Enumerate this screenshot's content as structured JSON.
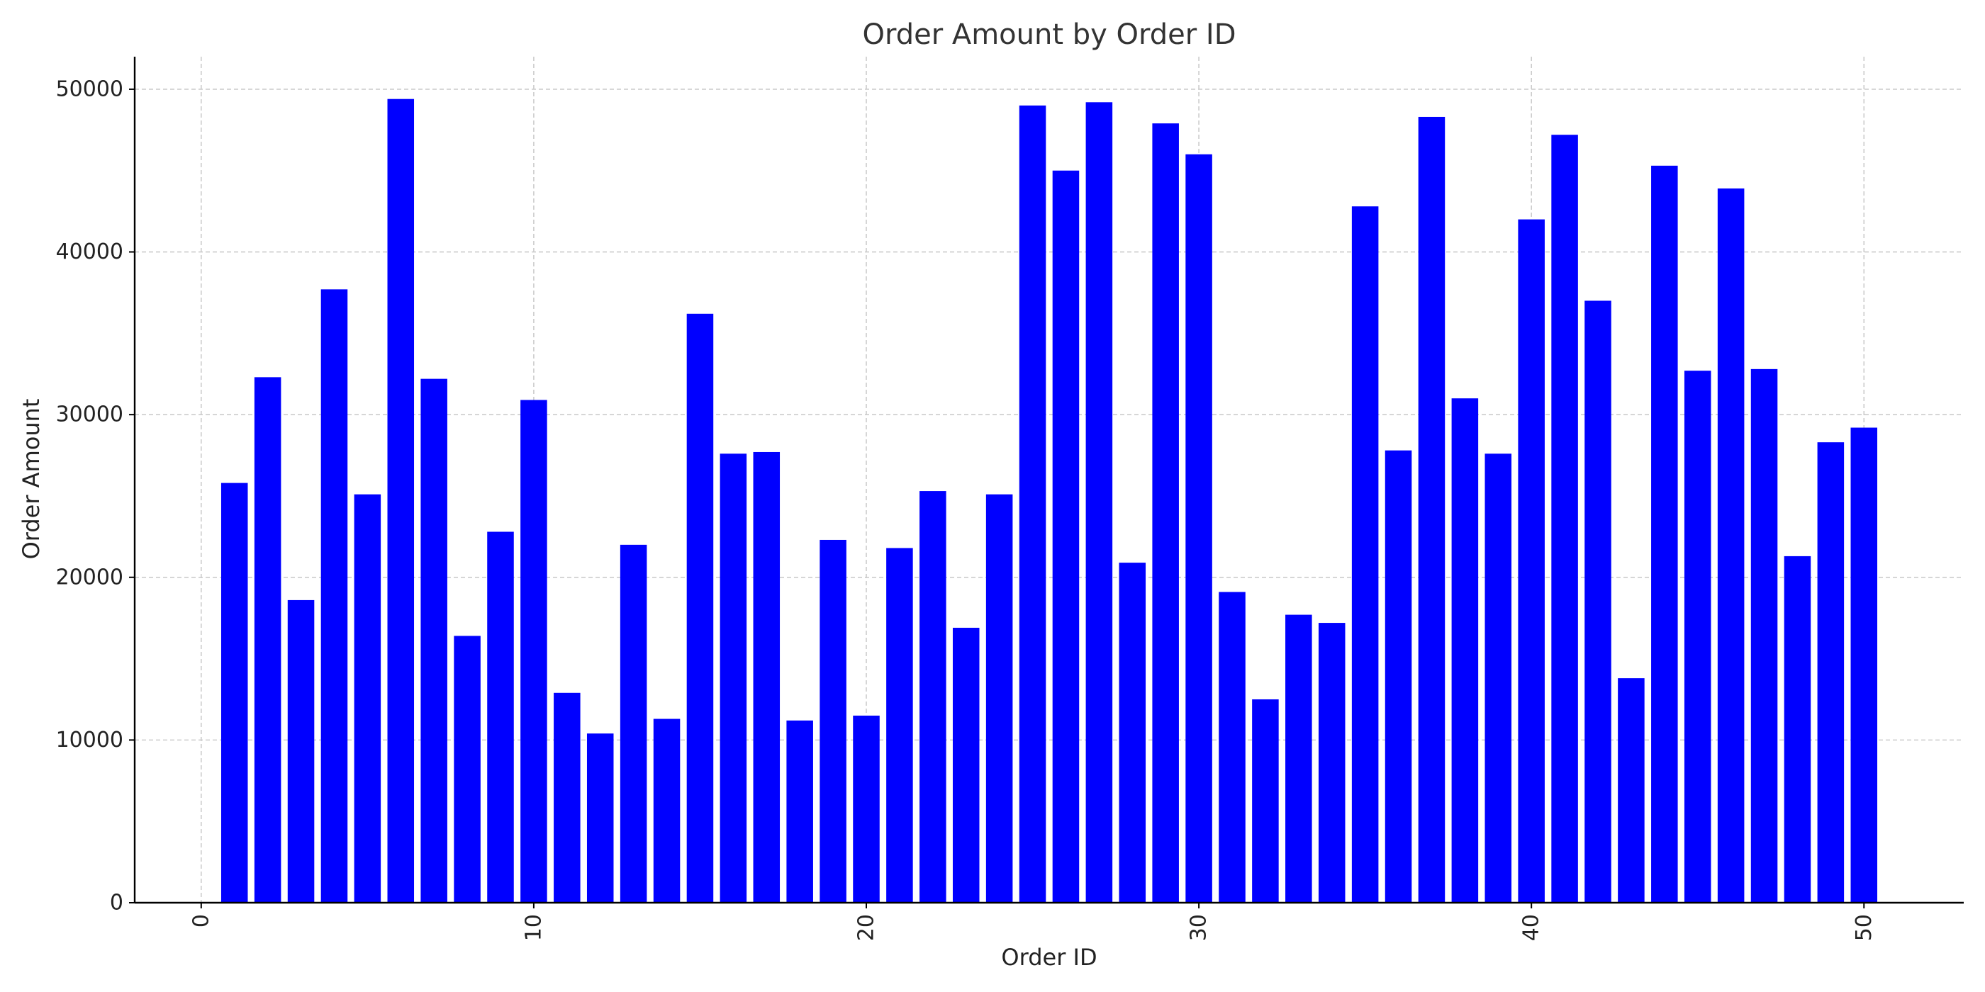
{
  "chart_data": {
    "type": "bar",
    "title": "Order Amount by Order ID",
    "xlabel": "Order ID",
    "ylabel": "Order Amount",
    "x": [
      1,
      2,
      3,
      4,
      5,
      6,
      7,
      8,
      9,
      10,
      11,
      12,
      13,
      14,
      15,
      16,
      17,
      18,
      19,
      20,
      21,
      22,
      23,
      24,
      25,
      26,
      27,
      28,
      29,
      30,
      31,
      32,
      33,
      34,
      35,
      36,
      37,
      38,
      39,
      40,
      41,
      42,
      43,
      44,
      45,
      46,
      47,
      48,
      49,
      50
    ],
    "values": [
      25800,
      32300,
      18600,
      37700,
      25100,
      49400,
      32200,
      16400,
      22800,
      30900,
      12900,
      10400,
      22000,
      11300,
      36200,
      27600,
      27700,
      11200,
      22300,
      11500,
      21800,
      25300,
      16900,
      25100,
      49000,
      45000,
      49200,
      20900,
      47900,
      46000,
      19100,
      12500,
      17700,
      17200,
      42800,
      27800,
      48300,
      31000,
      27600,
      42000,
      47200,
      37000,
      13800,
      45300,
      32700,
      43900,
      32800,
      21300,
      28300,
      29200
    ],
    "xlim": [
      -2,
      53
    ],
    "ylim": [
      0,
      52000
    ],
    "xticks": [
      0,
      10,
      20,
      30,
      40,
      50
    ],
    "yticks": [
      0,
      10000,
      20000,
      30000,
      40000,
      50000
    ],
    "xtick_rotation": 90,
    "bar_color": "#0000ff",
    "grid": true
  }
}
